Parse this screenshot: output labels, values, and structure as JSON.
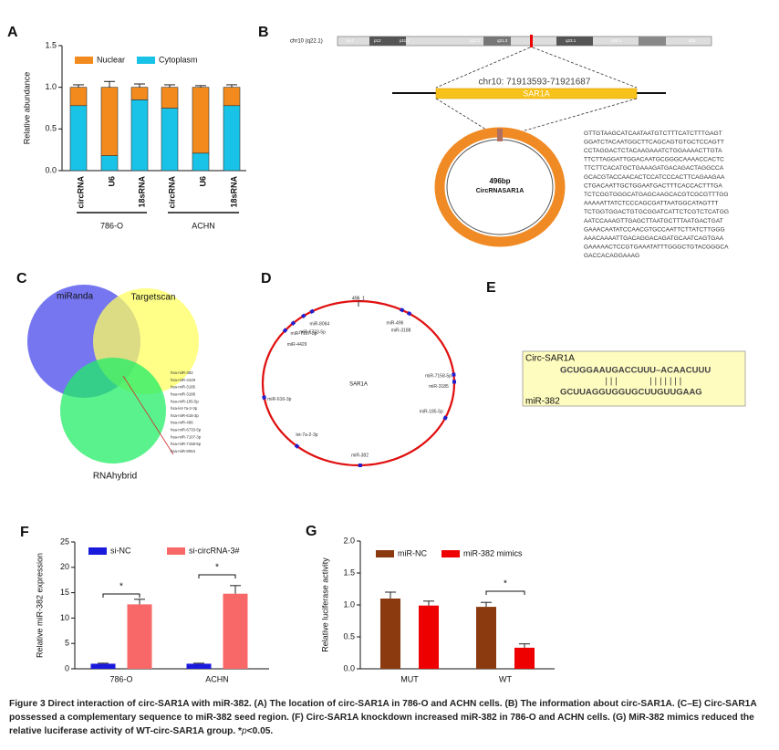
{
  "chart_data": [
    {
      "type": "bar",
      "stacked": true,
      "panel_label": "A",
      "ylabel": "Relative abundance",
      "categories": [
        "circRNA",
        "U6",
        "18sRNA",
        "circRNA",
        "U6",
        "18sRNA"
      ],
      "groups": [
        "786-O",
        "ACHN"
      ],
      "series": [
        {
          "name": "Nuclear",
          "color": "#f28a1d",
          "values": [
            0.22,
            0.82,
            0.15,
            0.25,
            0.79,
            0.22
          ],
          "errors": [
            0.03,
            0.07,
            0.04,
            0.03,
            0.02,
            0.03
          ]
        },
        {
          "name": "Cytoplasm",
          "color": "#19c3e8",
          "values": [
            0.78,
            0.18,
            0.85,
            0.75,
            0.21,
            0.78
          ],
          "errors": [
            0.03,
            0.03,
            0.03,
            0.03,
            0.02,
            0.03
          ]
        }
      ],
      "ylim": [
        0,
        1.5
      ],
      "yticks": [
        {
          "value": 0,
          "label": "0.0"
        },
        {
          "value": 0.5,
          "label": "0.5"
        },
        {
          "value": 1,
          "label": "1.0"
        },
        {
          "value": 1.5,
          "label": "1.5"
        }
      ]
    },
    {
      "type": "bar",
      "panel_label": "F",
      "ylabel": "Relative miR-382 expression",
      "categories": [
        "786-O",
        "ACHN"
      ],
      "series": [
        {
          "name": "si-NC",
          "color": "#1a1adc",
          "values": [
            1.0,
            1.0
          ],
          "errors": [
            0.1,
            0.1
          ]
        },
        {
          "name": "si-circRNA-3#",
          "color": "#f86868",
          "values": [
            12.7,
            14.8
          ],
          "errors": [
            1.0,
            1.6
          ]
        }
      ],
      "annotations": [
        "*",
        "*"
      ],
      "ylim": [
        0,
        25
      ],
      "yticks": [
        0,
        5,
        10,
        15,
        20,
        25
      ]
    },
    {
      "type": "bar",
      "panel_label": "G",
      "ylabel": "Relative luciferase activity",
      "categories": [
        "MUT",
        "WT"
      ],
      "series": [
        {
          "name": "miR-NC",
          "color": "#8b3a0f",
          "values": [
            1.1,
            0.97
          ],
          "errors": [
            0.1,
            0.07
          ]
        },
        {
          "name": "miR-382 mimics",
          "color": "#ee0000",
          "values": [
            0.99,
            0.33
          ],
          "errors": [
            0.07,
            0.06
          ]
        }
      ],
      "annotations": [
        "*"
      ],
      "ylim": [
        0,
        2
      ],
      "yticks": [
        {
          "value": 0,
          "label": "0.0"
        },
        {
          "value": 0.5,
          "label": "0.5"
        },
        {
          "value": 1,
          "label": "1.0"
        },
        {
          "value": 1.5,
          "label": "1.5"
        },
        {
          "value": 2,
          "label": "2.0"
        }
      ]
    }
  ],
  "panel_b": {
    "panel_label": "B",
    "chromosome": "chr10 (q22.1)",
    "bands": [
      "p14",
      "p12",
      "p11.1",
      "q21.1",
      "q21.3",
      "q23.1",
      "q25.1",
      "q26"
    ],
    "locus": "chr10: 71913593-71921687",
    "gene": "SAR1A",
    "size": "496bp",
    "circ_name": "CircRNASAR1A",
    "sequence": [
      "GTTGTAAGCATCAATAATGTCTTTCATCTTTGAGT",
      "GGATCTACAATGGCTTCAGCAGTGTGCTCCAGTT",
      "CCTAGGACTCTACAAGAAATCTGGAAAACTTGTA",
      "TTCTTAGGATTGGACAATGCGGGCAAAACCACTC",
      "TTCTTCACATGCTGAAAGATGACAGACTAGGCCA",
      "GCACGTACCAACACTCCATCCCACTTCAGAAGAA",
      "CTGACAATTGCTGGAATGACTTTCACCACTTTGA",
      "TCTCGGTGGGCATGAGCAAGCACGTCGCGTTTGG",
      "AAAAATTATCTCCCAGCGATTAATGGCATAGTTT",
      "TCTGGTGGACTGTGCGGATCATTCTCGTCTCATGG",
      "AATCCAAAGTTGAGCTTAATGCTTTAATGACTGAT",
      "GAAACAATATCCAACGTGCCAATTCTTATCTTGGG",
      "AAACAAAATTGACAGGACAGATGCAATCAGTGAA",
      "GAAAAACTCCGTGAAATATTTGGGCTGTACGGGCA",
      "GACCACAGGAAAG"
    ]
  },
  "panel_c": {
    "panel_label": "C",
    "sets": [
      "miRanda",
      "Targetscan",
      "RNAhybrid"
    ],
    "overlap": [
      "hsa-miR-382",
      "hsa-miR-4429",
      "hsa-miR-3185",
      "hsa-miR-3188",
      "hsa-miR-185-5p",
      "hsa-let-7a-2-3p",
      "hsa-miR-616-3p",
      "hsa-miR-496",
      "hsa-miR-6733-5p",
      "hsa-miR-7107-3p",
      "hsa-miR-7158-5p",
      "hsa-miR-8064"
    ]
  },
  "panel_d": {
    "panel_label": "D",
    "circ_id": "496_1",
    "center": "SAR1A",
    "sites": [
      "miR-8064",
      "miR-6733-5p",
      "miR-7107-3p",
      "miR-4429",
      "miR-496",
      "miR-3188",
      "miR-7158-5p",
      "miR-3185",
      "miR-185-5p",
      "miR-382",
      "let-7a-2-3p",
      "miR-616-3p"
    ]
  },
  "panel_e": {
    "panel_label": "E",
    "top_name": "Circ-SAR1A",
    "top_seq": "GCUGGAAUGACCUUU–ACAACUUU",
    "pairs": "|||      |||||||",
    "bottom_seq": "GCUUAGGUGGUGCUUGUUGAAG",
    "bottom_name": "miR-382"
  },
  "caption": [
    {
      "text": "Figure 3",
      "bold": true
    },
    " Direct interaction of circ-SAR1A with miR-382. (",
    {
      "text": "A",
      "bold": true
    },
    ") The location of circ-SAR1A in 786-O and ACHN cells. (",
    {
      "text": "B",
      "bold": true
    },
    ") The information about circ-SAR1A. (",
    {
      "text": "C–E",
      "bold": true
    },
    ") Circ-SAR1A possessed a complementary sequence to miR-382 seed region. (",
    {
      "text": "F",
      "bold": true
    },
    ") Circ-SAR1A knockdown increased miR-382 in 786-O and ACHN cells. (",
    {
      "text": "G",
      "bold": true
    },
    ") MiR-382 mimics reduced the relative luciferase activity of WT-circ-SAR1A group. *",
    {
      "text": "p",
      "italic": true
    },
    "<0.05."
  ]
}
